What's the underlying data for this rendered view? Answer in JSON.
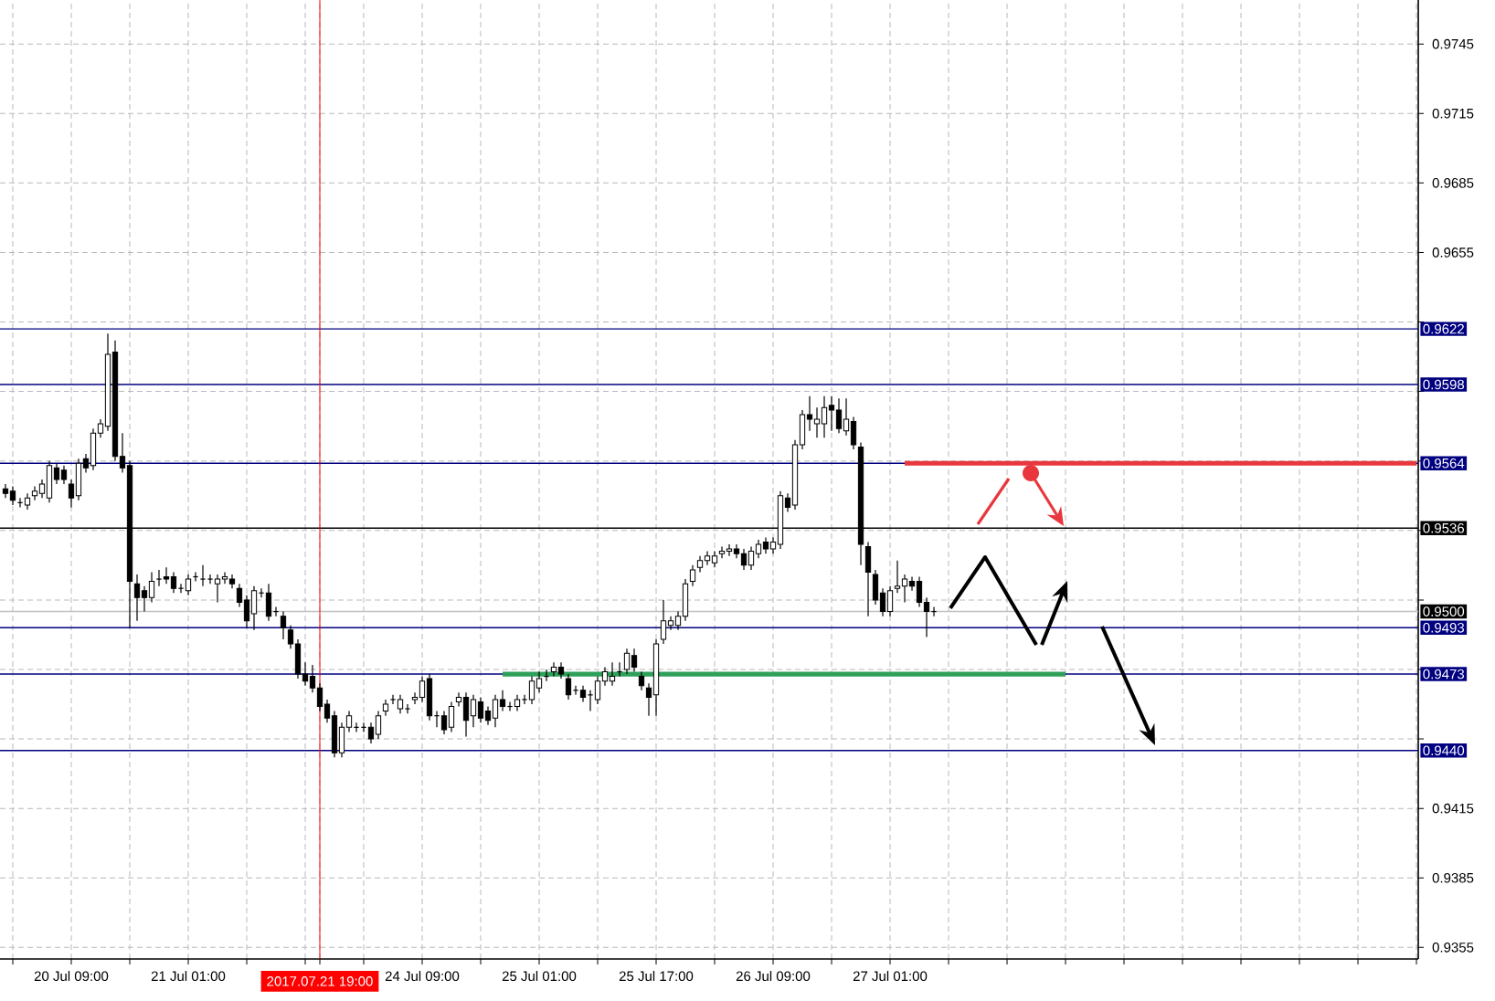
{
  "chart_data": {
    "type": "candlestick",
    "categories": [
      null,
      null,
      null,
      null,
      null,
      null,
      null,
      null,
      null,
      "20 Jul 09:00",
      null,
      null,
      null,
      null,
      null,
      null,
      null,
      null,
      null,
      null,
      null,
      null,
      null,
      null,
      null,
      "21 Jul 01:00",
      null,
      null,
      null,
      null,
      null,
      null,
      null,
      null,
      null,
      null,
      null,
      null,
      null,
      null,
      null,
      null,
      null,
      "2017.07.21 19:00",
      null,
      null,
      null,
      null,
      null,
      null,
      null,
      null,
      null,
      null,
      null,
      null,
      null,
      "24 Jul 09:00",
      null,
      null,
      null,
      null,
      null,
      null,
      null,
      null,
      null,
      null,
      null,
      null,
      null,
      null,
      null,
      "25 Jul 01:00",
      null,
      null,
      null,
      null,
      null,
      null,
      null,
      null,
      null,
      null,
      null,
      null,
      null,
      null,
      null,
      "25 Jul 17:00",
      null,
      null,
      null,
      null,
      null,
      null,
      null,
      null,
      null,
      null,
      null,
      null,
      null,
      null,
      null,
      "26 Jul 09:00",
      null,
      null,
      null,
      null,
      null,
      null,
      null,
      null,
      null,
      null,
      null,
      null,
      null,
      null,
      null,
      "27 Jul 01:00",
      null,
      null,
      null,
      null,
      null,
      null,
      null,
      null,
      null,
      null,
      null,
      null,
      null,
      null,
      null,
      null,
      null,
      null,
      null,
      null,
      null,
      null,
      null,
      null,
      null,
      null,
      null,
      null,
      null,
      null,
      null,
      null,
      null,
      null,
      null,
      null,
      null,
      null,
      null,
      null,
      null,
      null,
      null,
      null,
      null,
      null,
      null,
      null,
      null,
      null,
      null,
      null,
      null,
      null,
      null,
      null,
      null,
      null,
      null,
      null,
      null,
      null,
      null,
      null,
      null,
      null,
      null,
      null,
      null,
      null,
      null,
      null
    ],
    "ohlc": [
      [
        0.9553,
        0.9555,
        0.9549,
        0.9551
      ],
      [
        0.9552,
        0.9554,
        0.9546,
        0.9548
      ],
      [
        0.9547,
        0.9549,
        0.9545,
        0.9547
      ],
      [
        0.9546,
        0.9551,
        0.9544,
        0.9549
      ],
      [
        0.955,
        0.9554,
        0.9548,
        0.9552
      ],
      [
        0.9551,
        0.9557,
        0.9549,
        0.9555
      ],
      [
        0.9549,
        0.9565,
        0.9547,
        0.9563
      ],
      [
        0.9562,
        0.9564,
        0.9555,
        0.9557
      ],
      [
        0.9561,
        0.9563,
        0.9555,
        0.9557
      ],
      [
        0.9555,
        0.9557,
        0.9545,
        0.9549
      ],
      [
        0.955,
        0.9566,
        0.9548,
        0.9564
      ],
      [
        0.9566,
        0.9568,
        0.956,
        0.9562
      ],
      [
        0.9563,
        0.9579,
        0.9561,
        0.9577
      ],
      [
        0.9577,
        0.9583,
        0.9575,
        0.9581
      ],
      [
        0.958,
        0.962,
        0.9578,
        0.9611
      ],
      [
        0.9612,
        0.9617,
        0.9565,
        0.9567
      ],
      [
        0.9567,
        0.9577,
        0.956,
        0.9562
      ],
      [
        0.9563,
        0.9565,
        0.9493,
        0.9513
      ],
      [
        0.9512,
        0.9516,
        0.9496,
        0.9506
      ],
      [
        0.9509,
        0.9511,
        0.95,
        0.9506
      ],
      [
        0.9506,
        0.9517,
        0.9504,
        0.9513
      ],
      [
        0.9514,
        0.9518,
        0.9511,
        0.9514
      ],
      [
        0.9515,
        0.9519,
        0.9512,
        0.9514
      ],
      [
        0.9515,
        0.9517,
        0.9508,
        0.951
      ],
      [
        0.951,
        0.9512,
        0.9508,
        0.951
      ],
      [
        0.9509,
        0.9516,
        0.9507,
        0.9514
      ],
      [
        0.9515,
        0.9517,
        0.9513,
        0.9515
      ],
      [
        0.9514,
        0.952,
        0.9511,
        0.9514
      ],
      [
        0.9514,
        0.9516,
        0.9512,
        0.9514
      ],
      [
        0.9512,
        0.9516,
        0.9504,
        0.9514
      ],
      [
        0.9514,
        0.9517,
        0.9512,
        0.9515
      ],
      [
        0.9514,
        0.9516,
        0.951,
        0.9512
      ],
      [
        0.951,
        0.9512,
        0.9502,
        0.9504
      ],
      [
        0.9505,
        0.9507,
        0.9493,
        0.9496
      ],
      [
        0.9499,
        0.9511,
        0.9492,
        0.9509
      ],
      [
        0.9508,
        0.951,
        0.9506,
        0.9508
      ],
      [
        0.9508,
        0.9512,
        0.9496,
        0.9498
      ],
      [
        0.95,
        0.9502,
        0.9498,
        0.95
      ],
      [
        0.9498,
        0.95,
        0.9488,
        0.9493
      ],
      [
        0.9492,
        0.9494,
        0.9484,
        0.9486
      ],
      [
        0.9486,
        0.9488,
        0.9471,
        0.9473
      ],
      [
        0.9473,
        0.9478,
        0.9468,
        0.947
      ],
      [
        0.9472,
        0.9477,
        0.9465,
        0.9467
      ],
      [
        0.9467,
        0.9469,
        0.9457,
        0.9459
      ],
      [
        0.946,
        0.9462,
        0.9452,
        0.9454
      ],
      [
        0.9455,
        0.9457,
        0.9437,
        0.9439
      ],
      [
        0.9439,
        0.9452,
        0.9437,
        0.945
      ],
      [
        0.945,
        0.9457,
        0.9448,
        0.9455
      ],
      [
        0.945,
        0.9452,
        0.9448,
        0.945
      ],
      [
        0.945,
        0.9452,
        0.9448,
        0.945
      ],
      [
        0.945,
        0.9452,
        0.9443,
        0.9445
      ],
      [
        0.9447,
        0.9457,
        0.9445,
        0.9455
      ],
      [
        0.9457,
        0.9462,
        0.9455,
        0.946
      ],
      [
        0.9462,
        0.9464,
        0.946,
        0.9462
      ],
      [
        0.9458,
        0.9464,
        0.9456,
        0.9462
      ],
      [
        0.9458,
        0.946,
        0.9456,
        0.9458
      ],
      [
        0.9462,
        0.9465,
        0.946,
        0.9463
      ],
      [
        0.9463,
        0.9472,
        0.9461,
        0.947
      ],
      [
        0.9471,
        0.9473,
        0.9453,
        0.9455
      ],
      [
        0.9455,
        0.9457,
        0.945,
        0.9455
      ],
      [
        0.9455,
        0.9457,
        0.9447,
        0.9449
      ],
      [
        0.945,
        0.9461,
        0.9448,
        0.9459
      ],
      [
        0.9461,
        0.9465,
        0.9459,
        0.9463
      ],
      [
        0.9463,
        0.9465,
        0.9446,
        0.9453
      ],
      [
        0.9455,
        0.9464,
        0.945,
        0.9462
      ],
      [
        0.9461,
        0.9463,
        0.9452,
        0.9454
      ],
      [
        0.9457,
        0.9459,
        0.9451,
        0.9453
      ],
      [
        0.9454,
        0.9464,
        0.945,
        0.9462
      ],
      [
        0.9462,
        0.9466,
        0.9457,
        0.9459
      ],
      [
        0.9459,
        0.9461,
        0.9457,
        0.9459
      ],
      [
        0.9459,
        0.9464,
        0.9457,
        0.9462
      ],
      [
        0.9462,
        0.9464,
        0.946,
        0.9462
      ],
      [
        0.9462,
        0.9472,
        0.946,
        0.947
      ],
      [
        0.9467,
        0.9474,
        0.9465,
        0.9471
      ],
      [
        0.9472,
        0.9475,
        0.947,
        0.9472
      ],
      [
        0.9474,
        0.9478,
        0.9472,
        0.9476
      ],
      [
        0.9476,
        0.9478,
        0.9471,
        0.9473
      ],
      [
        0.9471,
        0.9473,
        0.9462,
        0.9464
      ],
      [
        0.9466,
        0.9468,
        0.9464,
        0.9466
      ],
      [
        0.9466,
        0.9468,
        0.9461,
        0.9463
      ],
      [
        0.9464,
        0.9466,
        0.9457,
        0.9464
      ],
      [
        0.9462,
        0.9472,
        0.946,
        0.947
      ],
      [
        0.947,
        0.9476,
        0.9468,
        0.9474
      ],
      [
        0.947,
        0.9478,
        0.9468,
        0.9472
      ],
      [
        0.9474,
        0.9478,
        0.9472,
        0.9474
      ],
      [
        0.9475,
        0.9484,
        0.9473,
        0.9482
      ],
      [
        0.9481,
        0.9484,
        0.9474,
        0.9476
      ],
      [
        0.9472,
        0.9474,
        0.9466,
        0.9468
      ],
      [
        0.9467,
        0.9469,
        0.9455,
        0.9463
      ],
      [
        0.9464,
        0.9488,
        0.9455,
        0.9486
      ],
      [
        0.9488,
        0.9505,
        0.9486,
        0.9496
      ],
      [
        0.9494,
        0.9498,
        0.9492,
        0.9496
      ],
      [
        0.9494,
        0.95,
        0.9492,
        0.9498
      ],
      [
        0.9498,
        0.9514,
        0.9496,
        0.9512
      ],
      [
        0.9513,
        0.952,
        0.9511,
        0.9518
      ],
      [
        0.9519,
        0.9524,
        0.9517,
        0.9522
      ],
      [
        0.9522,
        0.9526,
        0.952,
        0.9524
      ],
      [
        0.9521,
        0.9526,
        0.9519,
        0.9524
      ],
      [
        0.9525,
        0.9528,
        0.9523,
        0.9526
      ],
      [
        0.9526,
        0.9529,
        0.9524,
        0.9527
      ],
      [
        0.9527,
        0.9529,
        0.9523,
        0.9525
      ],
      [
        0.9525,
        0.9527,
        0.9518,
        0.952
      ],
      [
        0.952,
        0.9528,
        0.9518,
        0.9526
      ],
      [
        0.9525,
        0.9531,
        0.9523,
        0.9529
      ],
      [
        0.953,
        0.9532,
        0.9525,
        0.9527
      ],
      [
        0.9527,
        0.9532,
        0.9525,
        0.953
      ],
      [
        0.9529,
        0.9552,
        0.9527,
        0.955
      ],
      [
        0.9549,
        0.9551,
        0.9543,
        0.9545
      ],
      [
        0.9546,
        0.9574,
        0.9544,
        0.9572
      ],
      [
        0.9572,
        0.9587,
        0.957,
        0.9585
      ],
      [
        0.9585,
        0.9593,
        0.9578,
        0.9583
      ],
      [
        0.9581,
        0.9588,
        0.9575,
        0.9583
      ],
      [
        0.9581,
        0.9593,
        0.9575,
        0.9588
      ],
      [
        0.9589,
        0.9593,
        0.9578,
        0.9587
      ],
      [
        0.9587,
        0.9592,
        0.9577,
        0.9579
      ],
      [
        0.9578,
        0.9592,
        0.9576,
        0.9583
      ],
      [
        0.9582,
        0.9584,
        0.957,
        0.9572
      ],
      [
        0.9571,
        0.9573,
        0.952,
        0.9529
      ],
      [
        0.9528,
        0.953,
        0.9498,
        0.9517
      ],
      [
        0.9516,
        0.9518,
        0.9503,
        0.9505
      ],
      [
        0.9508,
        0.951,
        0.9498,
        0.95
      ],
      [
        0.95,
        0.9511,
        0.9498,
        0.9509
      ],
      [
        0.951,
        0.9522,
        0.9508,
        0.9511
      ],
      [
        0.9511,
        0.9516,
        0.9504,
        0.9514
      ],
      [
        0.9513,
        0.9515,
        0.9509,
        0.9511
      ],
      [
        0.9513,
        0.9515,
        0.9502,
        0.9504
      ],
      [
        0.9504,
        0.9506,
        0.9489,
        0.95
      ],
      [
        0.95,
        0.9502,
        0.9498,
        0.95
      ],
      null,
      null,
      null,
      null,
      null,
      null,
      null,
      null,
      null,
      null,
      null,
      null,
      null,
      null,
      null,
      null,
      null,
      null,
      null,
      null,
      null,
      null,
      null,
      null,
      null,
      null,
      null,
      null,
      null,
      null,
      null,
      null,
      null,
      null,
      null,
      null,
      null,
      null,
      null,
      null,
      null,
      null,
      null,
      null,
      null,
      null,
      null,
      null,
      null,
      null,
      null,
      null,
      null,
      null,
      null,
      null,
      null,
      null,
      null,
      null,
      null,
      null,
      null,
      null,
      null,
      null
    ],
    "series": [
      {
        "type": "line",
        "color": "#2ea05a",
        "values": [
          null,
          null,
          null,
          null,
          null,
          null,
          null,
          null,
          null,
          null,
          null,
          null,
          null,
          null,
          null,
          null,
          null,
          null,
          null,
          null,
          null,
          null,
          null,
          null,
          null,
          null,
          null,
          null,
          null,
          null,
          null,
          null,
          null,
          null,
          null,
          null,
          null,
          null,
          null,
          null,
          null,
          null,
          null,
          null,
          null,
          null,
          null,
          null,
          null,
          null,
          null,
          null,
          null,
          null,
          null,
          null,
          null,
          null,
          null,
          null,
          null,
          null,
          null,
          null,
          null,
          null,
          null,
          null,
          0.9473,
          0.9473,
          0.9473,
          0.9473,
          0.9473,
          0.9473,
          0.9473,
          0.9473,
          0.9473,
          0.9473,
          0.9473,
          0.9473,
          0.9473,
          0.9473,
          0.9473,
          0.9473,
          0.9473,
          0.9473,
          0.9473,
          0.9473,
          0.9473,
          0.9473,
          0.9473,
          0.9473,
          0.9473,
          0.9473,
          0.9473,
          0.9473,
          0.9473,
          0.9473,
          0.9473,
          0.9473,
          0.9473,
          0.9473,
          0.9473,
          0.9473,
          0.9473,
          0.9473,
          0.9473,
          0.9473,
          0.9473,
          0.9473,
          0.9473,
          0.9473,
          0.9473,
          0.9473,
          0.9473,
          0.9473,
          0.9473,
          0.9473,
          0.9473,
          0.9473,
          0.9473,
          0.9473,
          0.9473,
          0.9473,
          0.9473,
          0.9473,
          0.9473,
          0.9473,
          0.9473,
          0.9473,
          0.9473,
          0.9473,
          0.9473,
          0.9473,
          0.9473,
          0.9473,
          0.9473,
          0.9473,
          0.9473,
          0.9473,
          0.9473,
          0.9473,
          0.9473,
          0.9473,
          0.9473,
          0.9473,
          null,
          null,
          null,
          null,
          null,
          null,
          null,
          null,
          null,
          null,
          null,
          null,
          null,
          null,
          null,
          null,
          null,
          null,
          null,
          null,
          null,
          null,
          null,
          null,
          null,
          null,
          null,
          null,
          null,
          null,
          null,
          null,
          null,
          null,
          null,
          null,
          null,
          null,
          null,
          null,
          null,
          null,
          null,
          null,
          null,
          null,
          null,
          null
        ]
      },
      {
        "type": "line",
        "color": "#e8383d",
        "values": [
          null,
          null,
          null,
          null,
          null,
          null,
          null,
          null,
          null,
          null,
          null,
          null,
          null,
          null,
          null,
          null,
          null,
          null,
          null,
          null,
          null,
          null,
          null,
          null,
          null,
          null,
          null,
          null,
          null,
          null,
          null,
          null,
          null,
          null,
          null,
          null,
          null,
          null,
          null,
          null,
          null,
          null,
          null,
          null,
          null,
          null,
          null,
          null,
          null,
          null,
          null,
          null,
          null,
          null,
          null,
          null,
          null,
          null,
          null,
          null,
          null,
          null,
          null,
          null,
          null,
          null,
          null,
          null,
          null,
          null,
          null,
          null,
          null,
          null,
          null,
          null,
          null,
          null,
          null,
          null,
          null,
          null,
          null,
          null,
          null,
          null,
          null,
          null,
          null,
          null,
          null,
          null,
          null,
          null,
          null,
          null,
          null,
          null,
          null,
          null,
          null,
          null,
          null,
          null,
          null,
          null,
          null,
          null,
          null,
          null,
          null,
          null,
          null,
          null,
          null,
          null,
          null,
          null,
          null,
          null,
          null,
          null,
          null,
          0.9564,
          0.9564,
          0.9564,
          0.9564,
          0.9564,
          0.9564,
          0.9564,
          0.9564,
          0.9564,
          0.9564,
          0.9564,
          0.9564,
          0.9564,
          0.9564,
          0.9564,
          0.9564,
          0.9564,
          0.9564,
          0.9564,
          0.9564,
          0.9564,
          0.9564,
          0.9564,
          0.9564,
          0.9564,
          0.9564,
          0.9564,
          0.9564,
          0.9564,
          0.9564,
          0.9564,
          0.9564,
          0.9564,
          0.9564,
          0.9564,
          0.9564,
          0.9564,
          0.9564,
          0.9564,
          0.9564,
          0.9564,
          0.9564,
          0.9564,
          0.9564,
          0.9564,
          0.9564,
          0.9564,
          0.9564,
          0.9564,
          0.9564,
          0.9564,
          0.9564,
          0.9564,
          0.9564,
          0.9564,
          0.9564,
          0.9564,
          0.9564,
          0.9564,
          0.9564,
          0.9564,
          0.9564,
          0.9564,
          0.9564,
          0.9564,
          0.9564,
          0.9564,
          0.9564,
          0.9564,
          0.9564,
          0.9564
        ]
      }
    ],
    "ylim": [
      0.935,
      0.9764
    ],
    "yticks": [
      0.9355,
      0.9385,
      0.9415,
      {
        "value": 0.9445,
        "label": null
      },
      {
        "value": 0.9475,
        "label": null
      },
      {
        "value": 0.9505,
        "label": null
      },
      {
        "value": 0.9535,
        "label": null
      },
      {
        "value": 0.9565,
        "label": null
      },
      {
        "value": 0.9595,
        "label": null
      },
      {
        "value": 0.9625,
        "label": null
      },
      0.9655,
      0.9685,
      0.9715,
      0.9745
    ],
    "ref_lines": [
      {
        "axis": "y",
        "value": 0.9622,
        "label": "0.9622",
        "color": "#000080"
      },
      {
        "axis": "y",
        "value": 0.9598,
        "label": "0.9598",
        "color": "#000080"
      },
      {
        "axis": "y",
        "value": 0.9564,
        "label": "0.9564",
        "color": "#000080"
      },
      {
        "axis": "y",
        "value": 0.9536,
        "label": "0.9536",
        "color": "#000000"
      },
      {
        "axis": "y",
        "value": 0.95,
        "label": "0.9500",
        "color": "#c0c0c0"
      },
      {
        "axis": "y",
        "value": 0.9493,
        "label": "0.9493",
        "color": "#000080"
      },
      {
        "axis": "y",
        "value": 0.9473,
        "label": "0.9473",
        "color": "#000080"
      },
      {
        "axis": "y",
        "value": 0.944,
        "label": "0.9440",
        "color": "#000080"
      },
      {
        "axis": "x",
        "value": "2017.07.21 19:00",
        "color": "#ff0000"
      }
    ],
    "grid": true
  }
}
